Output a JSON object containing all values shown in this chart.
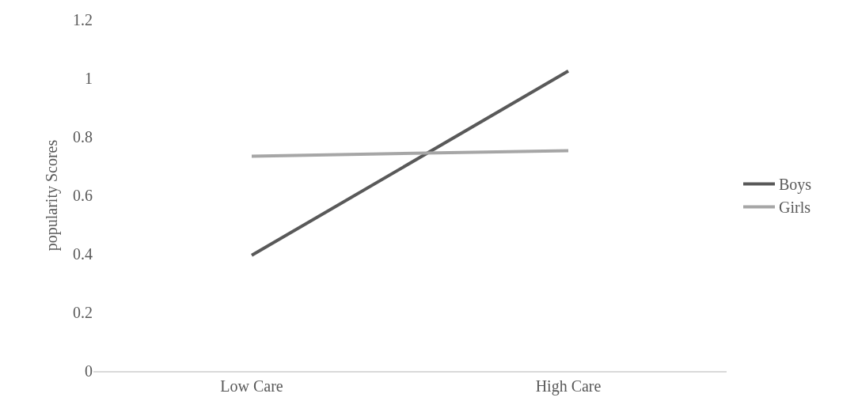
{
  "chart_data": {
    "type": "line",
    "ylabel": "popularity Scores",
    "categories": [
      "Low Care",
      "High Care"
    ],
    "series": [
      {
        "name": "Boys",
        "color": "#595959",
        "values": [
          0.395,
          1.025
        ]
      },
      {
        "name": "Girls",
        "color": "#a6a6a6",
        "values": [
          0.734,
          0.753
        ]
      }
    ],
    "ylim": [
      0,
      1.2
    ],
    "yticks": [
      0,
      0.2,
      0.4,
      0.6,
      0.8,
      1,
      1.2
    ],
    "legend": "right",
    "marker": "none",
    "line_style": "solid"
  }
}
